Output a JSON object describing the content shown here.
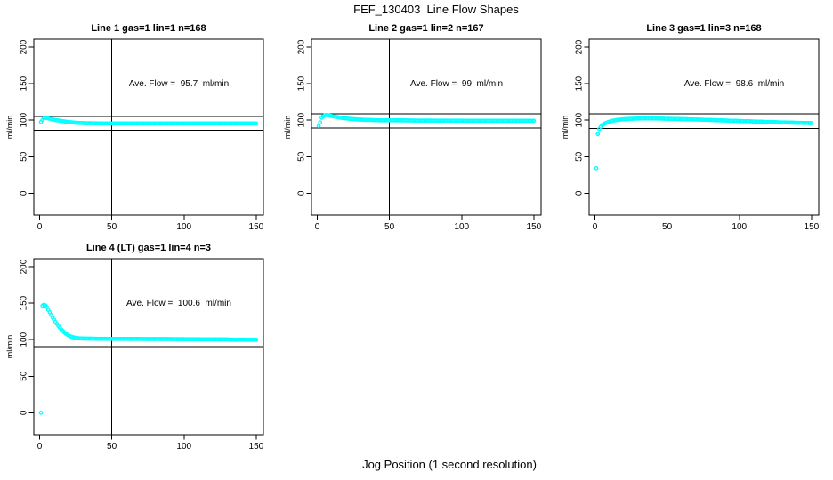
{
  "figure": {
    "title": "FEF_130403  Line Flow Shapes",
    "xlabel": "Jog Position (1 second resolution)",
    "background_color": "#ffffff",
    "axis_color": "#000000",
    "point_color": "#00ffff"
  },
  "chart_data": {
    "type": "scatter",
    "title": "FEF_130403  Line Flow Shapes",
    "xlabel": "Jog Position (1 second resolution)",
    "ylabel": "ml/min",
    "grid": "off",
    "legend": "none",
    "xlim": [
      -4,
      155
    ],
    "ylim": [
      -30,
      211
    ],
    "x_ticks": [
      0,
      50,
      100,
      150
    ],
    "y_ticks": [
      0,
      50,
      100,
      150,
      200
    ],
    "marker": "open-circle",
    "marker_color": "#00ffff",
    "panels": [
      {
        "title": "Line 1 gas=1 lin=1 n=168",
        "annotation": "Ave. Flow =  95.7  ml/min",
        "ave_flow": 95.7,
        "n": 168,
        "vline_x": 50,
        "ref_lines": [
          105.3,
          86.1
        ],
        "series": {
          "x_start": 1,
          "x_step": 1,
          "y": [
            97.5,
            100.5,
            102.5,
            103,
            103,
            102.5,
            102,
            101.5,
            101,
            100.5,
            100.2,
            99.9,
            99.6,
            99.3,
            99,
            98.7,
            98.4,
            98.1,
            97.8,
            97.5,
            97.3,
            97.1,
            96.9,
            96.7,
            96.5,
            96.4,
            96.3,
            96.2,
            96.1,
            96,
            96,
            95.9,
            95.9,
            95.8,
            95.8,
            95.8,
            95.7,
            95.7,
            95.7,
            95.7,
            95.6,
            95.6,
            95.6,
            95.6,
            95.6,
            95.6,
            95.6,
            95.6,
            95.6,
            95.6,
            95.6,
            95.6,
            95.6,
            95.6,
            95.6,
            95.6,
            95.6,
            95.6,
            95.6,
            95.6,
            95.6,
            95.6,
            95.6,
            95.6,
            95.6,
            95.6,
            95.6,
            95.6,
            95.6,
            95.6,
            95.6,
            95.6,
            95.6,
            95.6,
            95.6,
            95.6,
            95.6,
            95.6,
            95.6,
            95.6,
            95.6,
            95.6,
            95.6,
            95.6,
            95.6,
            95.6,
            95.6,
            95.6,
            95.6,
            95.6,
            95.6,
            95.6,
            95.6,
            95.6,
            95.6,
            95.6,
            95.6,
            95.6,
            95.6,
            95.6,
            95.6,
            95.6,
            95.6,
            95.6,
            95.6,
            95.6,
            95.6,
            95.6,
            95.6,
            95.6,
            95.6,
            95.6,
            95.6,
            95.6,
            95.6,
            95.6,
            95.6,
            95.6,
            95.6,
            95.6,
            95.6,
            95.6,
            95.6,
            95.6,
            95.6,
            95.6,
            95.6,
            95.6,
            95.6,
            95.6,
            95.6,
            95.6,
            95.6,
            95.6,
            95.6,
            95.6,
            95.6,
            95.6,
            95.6,
            95.6,
            95.6,
            95.6,
            95.6,
            95.6,
            95.6,
            95.6,
            95.6,
            95.6,
            95.6,
            95.6
          ]
        }
      },
      {
        "title": "Line 2 gas=1 lin=2 n=167",
        "annotation": "Ave. Flow =  99  ml/min",
        "ave_flow": 99,
        "n": 167,
        "vline_x": 50,
        "ref_lines": [
          108.9,
          89.1
        ],
        "series": {
          "x_start": 1,
          "x_step": 1,
          "y": [
            92,
            97,
            103.5,
            105.5,
            106.5,
            107,
            106.8,
            106.5,
            106.2,
            105.8,
            105.4,
            105,
            104.6,
            104.2,
            103.8,
            103.5,
            103.2,
            102.9,
            102.6,
            102.4,
            102.2,
            102,
            101.8,
            101.6,
            101.4,
            101.3,
            101.1,
            101,
            100.9,
            100.8,
            100.7,
            100.6,
            100.5,
            100.4,
            100.3,
            100.3,
            100.2,
            100.2,
            100.1,
            100.1,
            100,
            100,
            99.9,
            99.9,
            99.9,
            99.8,
            99.8,
            99.8,
            99.8,
            99.8,
            99.7,
            99.7,
            99.7,
            99.7,
            99.7,
            99.7,
            99.7,
            99.7,
            99.7,
            99.7,
            99.7,
            99.6,
            99.6,
            99.6,
            99.6,
            99.6,
            99.5,
            99.5,
            99.5,
            99.5,
            99.5,
            99.5,
            99.5,
            99.5,
            99.5,
            99.5,
            99.5,
            99.5,
            99.5,
            99.5,
            99.4,
            99.4,
            99.4,
            99.4,
            99.4,
            99.4,
            99.4,
            99.4,
            99.4,
            99.4,
            99.4,
            99.4,
            99.4,
            99.4,
            99.4,
            99.4,
            99.4,
            99.4,
            99.4,
            99.4,
            99.3,
            99.3,
            99.3,
            99.3,
            99.3,
            99.3,
            99.3,
            99.3,
            99.3,
            99.3,
            99.3,
            99.3,
            99.3,
            99.3,
            99.3,
            99.3,
            99.3,
            99.3,
            99.3,
            99.3,
            99.2,
            99.2,
            99.2,
            99.2,
            99.2,
            99.2,
            99.2,
            99.2,
            99.2,
            99.2,
            99.2,
            99.2,
            99.2,
            99.2,
            99.2,
            99.2,
            99.2,
            99.2,
            99.2,
            99.2,
            99.1,
            99.1,
            99.1,
            99.1,
            99.1,
            99.1,
            99.1,
            99.1,
            99.1,
            99.1
          ]
        }
      },
      {
        "title": "Line 3 gas=1 lin=3 n=168",
        "annotation": "Ave. Flow =  98.6  ml/min",
        "ave_flow": 98.6,
        "n": 168,
        "vline_x": 50,
        "ref_lines": [
          108.5,
          88.7
        ],
        "series": {
          "x_start": 1,
          "x_step": 1,
          "y": [
            34,
            81,
            88,
            91,
            93,
            94.5,
            95.5,
            96.5,
            97.3,
            98,
            98.6,
            99.1,
            99.5,
            99.9,
            100.2,
            100.5,
            100.7,
            100.9,
            101.1,
            101.3,
            101.4,
            101.6,
            101.7,
            101.8,
            101.9,
            102,
            102.1,
            102.2,
            102.2,
            102.3,
            102.3,
            102.4,
            102.4,
            102.5,
            102.5,
            102.5,
            102.5,
            102.4,
            102.4,
            102.4,
            102.3,
            102.3,
            102.3,
            102.2,
            102.2,
            102.2,
            102.1,
            102.1,
            102,
            102,
            101.9,
            101.9,
            101.8,
            101.8,
            101.7,
            101.7,
            101.6,
            101.6,
            101.5,
            101.5,
            101.4,
            101.4,
            101.3,
            101.3,
            101.2,
            101.2,
            101.1,
            101,
            101,
            100.9,
            100.9,
            100.8,
            100.7,
            100.7,
            100.6,
            100.5,
            100.5,
            100.4,
            100.3,
            100.3,
            100.2,
            100.1,
            100.1,
            100,
            99.9,
            99.9,
            99.8,
            99.7,
            99.7,
            99.6,
            99.5,
            99.5,
            99.4,
            99.3,
            99.3,
            99.2,
            99.1,
            99.1,
            99,
            98.9,
            98.9,
            98.8,
            98.7,
            98.7,
            98.6,
            98.5,
            98.5,
            98.4,
            98.3,
            98.3,
            98.2,
            98.1,
            98.1,
            98,
            97.9,
            97.9,
            97.8,
            97.7,
            97.7,
            97.6,
            97.5,
            97.5,
            97.4,
            97.3,
            97.3,
            97.2,
            97.1,
            97.1,
            97,
            97,
            96.9,
            96.9,
            96.8,
            96.8,
            96.7,
            96.7,
            96.6,
            96.6,
            96.5,
            96.5,
            96.4,
            96.4,
            96.3,
            96.3,
            96.2,
            96.2,
            96.1,
            96.1,
            96,
            96
          ]
        }
      },
      {
        "title": "Line 4 (LT) gas=1 lin=4 n=3",
        "annotation": "Ave. Flow =  100.6  ml/min",
        "ave_flow": 100.6,
        "n": 3,
        "vline_x": 50,
        "ref_lines": [
          110.7,
          90.5
        ],
        "series": {
          "x_start": 1,
          "x_step": 1,
          "y": [
            0,
            146.5,
            148,
            147,
            144.5,
            141,
            137.5,
            134,
            130.5,
            127.5,
            124.5,
            121.5,
            119,
            116.5,
            114,
            112,
            110,
            108.5,
            107,
            105.8,
            104.8,
            104,
            103.4,
            102.9,
            102.5,
            102.2,
            102,
            101.8,
            101.7,
            101.6,
            101.5,
            101.5,
            101.4,
            101.4,
            101.4,
            101.3,
            101.3,
            101.3,
            101.2,
            101.2,
            101.2,
            101.2,
            101.2,
            101.2,
            101.2,
            101.1,
            101.1,
            101.1,
            101.1,
            101.1,
            101.1,
            101.1,
            101.1,
            101.1,
            101.1,
            101,
            101,
            101,
            101,
            101,
            101,
            101,
            101,
            101,
            101,
            101,
            101,
            101,
            101,
            101,
            100.9,
            100.9,
            100.9,
            100.9,
            100.9,
            100.9,
            100.9,
            100.9,
            100.9,
            100.9,
            100.8,
            100.8,
            100.8,
            100.8,
            100.8,
            100.8,
            100.8,
            100.8,
            100.8,
            100.8,
            100.7,
            100.7,
            100.7,
            100.7,
            100.7,
            100.7,
            100.7,
            100.7,
            100.7,
            100.7,
            100.6,
            100.6,
            100.6,
            100.6,
            100.6,
            100.6,
            100.6,
            100.6,
            100.6,
            100.6,
            100.5,
            100.5,
            100.5,
            100.5,
            100.5,
            100.5,
            100.5,
            100.5,
            100.5,
            100.5,
            100.3,
            100.3,
            100.3,
            100.3,
            100.3,
            100.3,
            100.3,
            100.3,
            100.3,
            100.3,
            100.1,
            100.1,
            100,
            100,
            99.9,
            99.9,
            99.9,
            100,
            100,
            100,
            100,
            100,
            99.9,
            99.9,
            99.9,
            100,
            99.8,
            99.9,
            100,
            99.9
          ]
        }
      }
    ]
  }
}
